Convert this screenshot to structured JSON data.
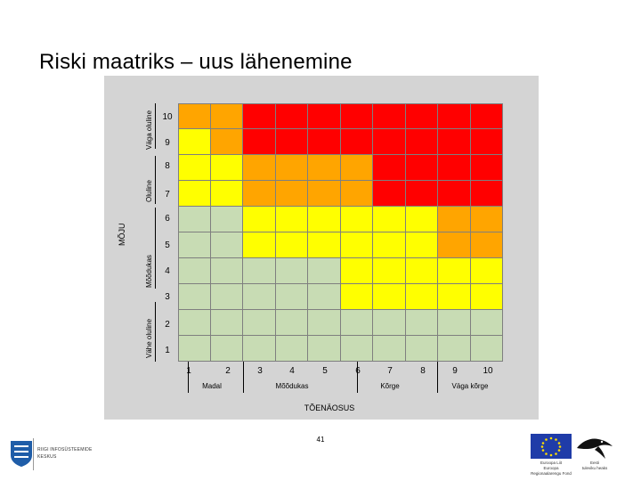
{
  "slide": {
    "title": "Riski maatriks – uus lähenemine",
    "page_number": "41"
  },
  "colors": {
    "R": "#ff0000",
    "O": "#ffa500",
    "Y": "#ffff00",
    "G": "#c8dcb4",
    "panel": "#d4d4d4"
  },
  "matrix": {
    "rows_top_to_bottom": [
      {
        "impact": "10",
        "cells": [
          "O",
          "O",
          "R",
          "R",
          "R",
          "R",
          "R",
          "R",
          "R",
          "R"
        ]
      },
      {
        "impact": "9",
        "cells": [
          "Y",
          "O",
          "R",
          "R",
          "R",
          "R",
          "R",
          "R",
          "R",
          "R"
        ]
      },
      {
        "impact": "8",
        "cells": [
          "Y",
          "Y",
          "O",
          "O",
          "O",
          "O",
          "R",
          "R",
          "R",
          "R"
        ]
      },
      {
        "impact": "7",
        "cells": [
          "Y",
          "Y",
          "O",
          "O",
          "O",
          "O",
          "R",
          "R",
          "R",
          "R"
        ]
      },
      {
        "impact": "6",
        "cells": [
          "G",
          "G",
          "Y",
          "Y",
          "Y",
          "Y",
          "Y",
          "Y",
          "O",
          "O"
        ]
      },
      {
        "impact": "5",
        "cells": [
          "G",
          "G",
          "Y",
          "Y",
          "Y",
          "Y",
          "Y",
          "Y",
          "O",
          "O"
        ]
      },
      {
        "impact": "4",
        "cells": [
          "G",
          "G",
          "G",
          "G",
          "G",
          "Y",
          "Y",
          "Y",
          "Y",
          "Y"
        ]
      },
      {
        "impact": "3",
        "cells": [
          "G",
          "G",
          "G",
          "G",
          "G",
          "Y",
          "Y",
          "Y",
          "Y",
          "Y"
        ]
      },
      {
        "impact": "2",
        "cells": [
          "G",
          "G",
          "G",
          "G",
          "G",
          "G",
          "G",
          "G",
          "G",
          "G"
        ]
      },
      {
        "impact": "1",
        "cells": [
          "G",
          "G",
          "G",
          "G",
          "G",
          "G",
          "G",
          "G",
          "G",
          "G"
        ]
      }
    ],
    "x_numbers": [
      "1",
      "2",
      "3",
      "4",
      "5",
      "6",
      "7",
      "8",
      "9",
      "10"
    ],
    "x_labels": [
      "Madal",
      "Mõõdukas",
      "Kõrge",
      "Väga kõrge"
    ],
    "x_title": "TÕENÄOSUS",
    "y_labels": [
      "Väga oluline",
      "Oluline",
      "Mõõdukas",
      "Vähe oluline"
    ],
    "y_title": "MÕJU"
  },
  "footer": {
    "gov_lines": [
      "RIIGI INFOSÜSTEEMIDE",
      "KESKUS"
    ],
    "eu_caption": [
      "Euroopa Liit",
      "Euroopa Regionaalarengu Fond"
    ],
    "ee_caption": [
      "Eesti",
      "tuleviku heaks"
    ]
  }
}
